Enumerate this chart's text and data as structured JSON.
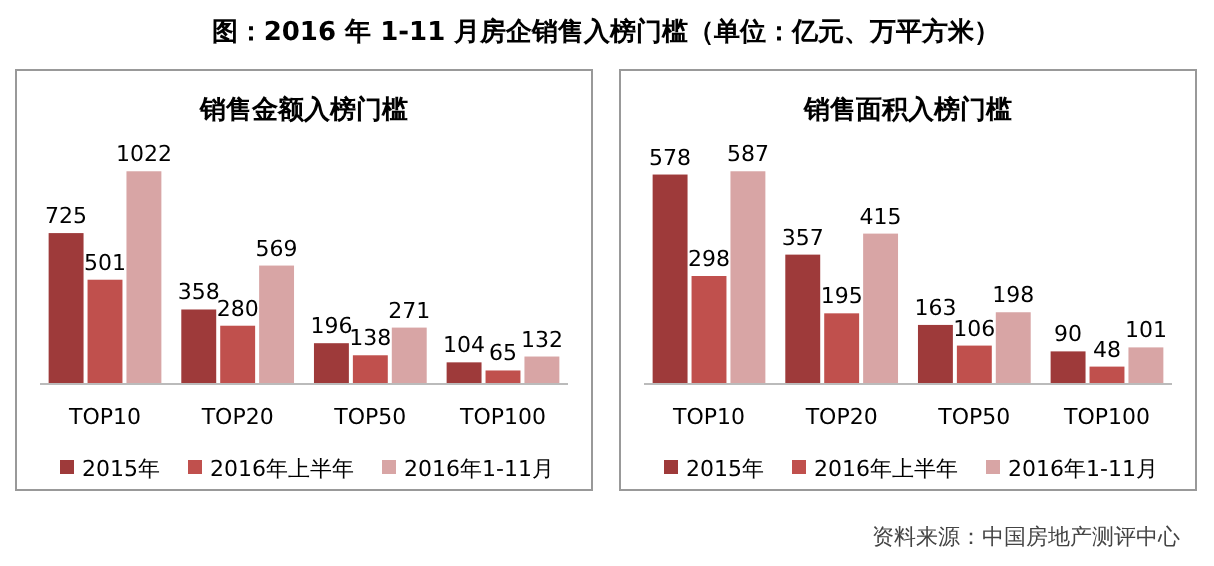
{
  "chart_data": [
    {
      "type": "bar",
      "title": "销售金额入榜门槛",
      "annotations": [
        "图：2016 年 1-11 月房企销售入榜门槛（单位：亿元、万平方米）"
      ],
      "categories": [
        "TOP10",
        "TOP20",
        "TOP50",
        "TOP100"
      ],
      "series": [
        {
          "name": "2015年",
          "color": "#9e3a3a",
          "values": [
            725,
            358,
            196,
            104
          ]
        },
        {
          "name": "2016年上半年",
          "color": "#c0504d",
          "values": [
            501,
            280,
            138,
            65
          ]
        },
        {
          "name": "2016年1-11月",
          "color": "#d8a5a5",
          "values": [
            1022,
            569,
            271,
            132
          ]
        }
      ],
      "data_labels": true,
      "legend": "bottom"
    },
    {
      "type": "bar",
      "title": "销售面积入榜门槛",
      "annotations": [
        "资料来源：中国房地产测评中心"
      ],
      "categories": [
        "TOP10",
        "TOP20",
        "TOP50",
        "TOP100"
      ],
      "series": [
        {
          "name": "2015年",
          "color": "#9e3a3a",
          "values": [
            578,
            357,
            163,
            90
          ]
        },
        {
          "name": "2016年上半年",
          "color": "#c0504d",
          "values": [
            298,
            195,
            106,
            48
          ]
        },
        {
          "name": "2016年1-11月",
          "color": "#d8a5a5",
          "values": [
            587,
            415,
            198,
            101
          ]
        }
      ],
      "data_labels": true,
      "legend": "bottom"
    }
  ]
}
